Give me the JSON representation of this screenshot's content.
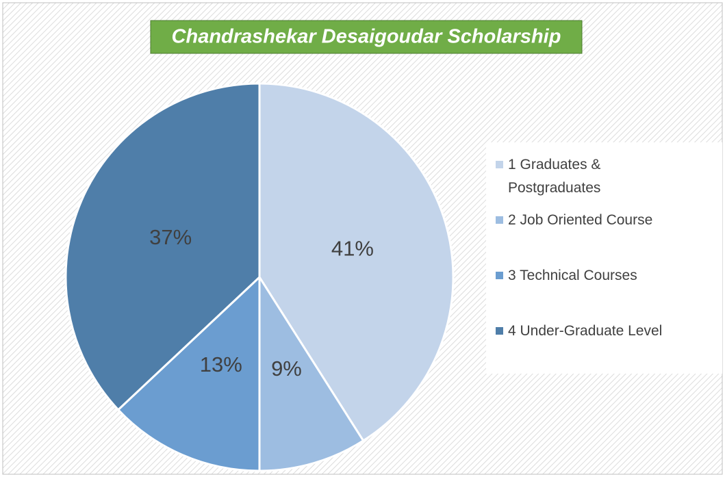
{
  "chart_data": {
    "type": "pie",
    "title": "Chandrashekar Desaigoudar Scholarship",
    "categories": [
      "1 Graduates & Postgraduates",
      "2 Job Oriented Course",
      "3 Technical Courses",
      "4 Under-Graduate Level"
    ],
    "values": [
      41,
      9,
      13,
      37
    ],
    "value_labels": [
      "41%",
      "9%",
      "13%",
      "37%"
    ],
    "colors": [
      "#c3d4ea",
      "#9dbde1",
      "#6b9dd0",
      "#4f7ea9"
    ],
    "title_color": "#70ad47",
    "legend": "right"
  }
}
